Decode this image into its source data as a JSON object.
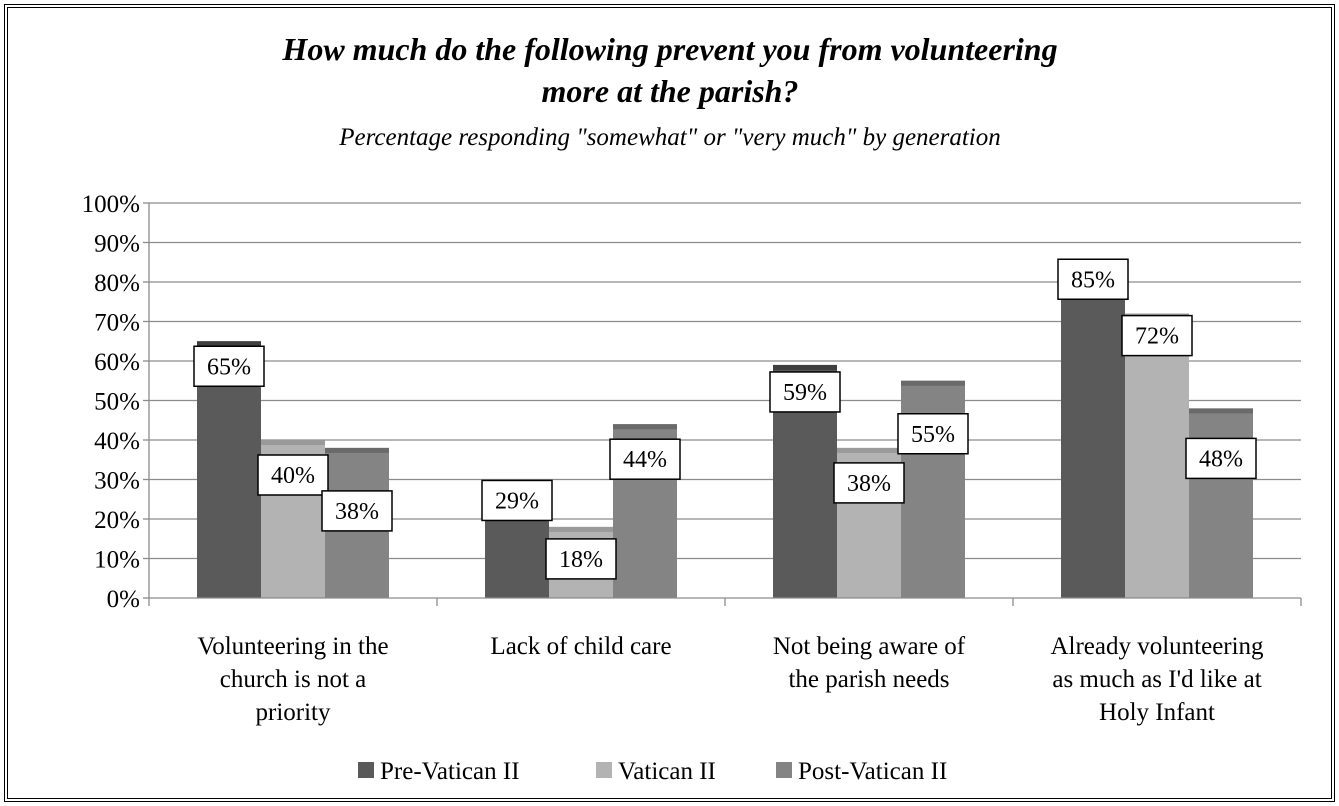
{
  "chart_data": {
    "type": "bar",
    "title_lines": [
      "How much do the following prevent you from volunteering",
      "more at the parish?"
    ],
    "subtitle": "Percentage responding \"somewhat\" or \"very much\" by generation",
    "categories": [
      [
        "Volunteering in the",
        "church is not a",
        "priority"
      ],
      [
        "Lack of child care"
      ],
      [
        "Not being aware of",
        "the parish needs"
      ],
      [
        "Already volunteering",
        "as much as I'd like at",
        "Holy Infant"
      ]
    ],
    "series": [
      {
        "name": "Pre-Vatican II",
        "values": [
          65,
          29,
          59,
          85
        ],
        "labels": [
          "65%",
          "29%",
          "59%",
          "85%"
        ],
        "color": "#5a5a5a",
        "cap": "#3f3f3f"
      },
      {
        "name": "Vatican II",
        "values": [
          40,
          18,
          38,
          72
        ],
        "labels": [
          "40%",
          "18%",
          "38%",
          "72%"
        ],
        "color": "#b3b3b3",
        "cap": "#9a9a9a"
      },
      {
        "name": "Post-Vatican II",
        "values": [
          38,
          44,
          55,
          48
        ],
        "labels": [
          "38%",
          "44%",
          "55%",
          "48%"
        ],
        "color": "#848484",
        "cap": "#6a6a6a"
      }
    ],
    "y_ticks": [
      "0%",
      "10%",
      "20%",
      "30%",
      "40%",
      "50%",
      "60%",
      "70%",
      "80%",
      "90%",
      "100%"
    ],
    "ylim": [
      0,
      100
    ],
    "grid": true,
    "legend_position": "bottom"
  }
}
